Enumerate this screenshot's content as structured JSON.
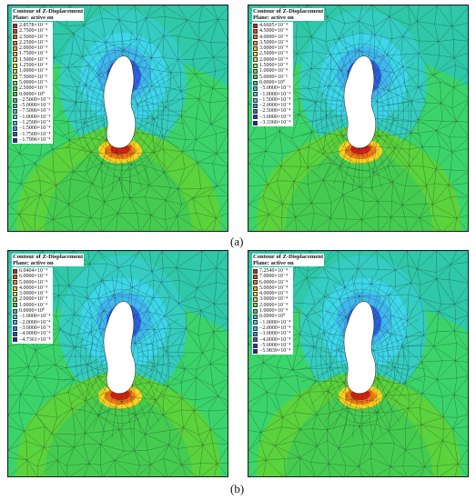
{
  "captions": [
    "(a)",
    "(b)"
  ],
  "panels": [
    {
      "title": "Contour of Z-Displacement",
      "subtitle": "Plane: active on",
      "levels": [
        "2.8578×10⁻⁴",
        "2.7500×10⁻⁴",
        "2.5000×10⁻⁴",
        "2.2500×10⁻⁴",
        "2.0000×10⁻⁴",
        "1.7500×10⁻⁴",
        "1.5000×10⁻⁴",
        "1.2500×10⁻⁴",
        "1.0000×10⁻⁴",
        "7.5000×10⁻⁵",
        "5.0000×10⁻⁵",
        "2.5000×10⁻⁵",
        "0.0000×10⁰",
        "−2.5000×10⁻⁵",
        "−5.0000×10⁻⁵",
        "−7.5000×10⁻⁵",
        "−1.0000×10⁻⁴",
        "−1.2500×10⁻⁴",
        "−1.5000×10⁻⁴",
        "−1.7500×10⁻⁴",
        "−1.7996×10⁻⁴"
      ],
      "colors": [
        "#d81f10",
        "#e43a0f",
        "#ef5a10",
        "#f47a14",
        "#f8a01a",
        "#fbc41c",
        "#fde020",
        "#e8ef26",
        "#c3ec2c",
        "#9ee630",
        "#7cde34",
        "#5cd53e",
        "#40cc58",
        "#36c47c",
        "#32c0a4",
        "#34c6cb",
        "#3cd2e6",
        "#42c0f0",
        "#3a92ec",
        "#2a5ee0",
        "#1b2bd0"
      ]
    },
    {
      "title": "Contour of Z-Displacement",
      "subtitle": "Plane: active on",
      "levels": [
        "4.6605×10⁻⁴",
        "4.5000×10⁻⁴",
        "4.0000×10⁻⁴",
        "3.5000×10⁻⁴",
        "3.0000×10⁻⁴",
        "2.5000×10⁻⁴",
        "2.0000×10⁻⁴",
        "1.5000×10⁻⁴",
        "1.0000×10⁻⁴",
        "5.0000×10⁻⁵",
        "0.0000×10⁰",
        "−5.0000×10⁻⁵",
        "−1.0000×10⁻⁴",
        "−1.5000×10⁻⁴",
        "−2.0000×10⁻⁴",
        "−2.5000×10⁻⁴",
        "−3.0000×10⁻⁴",
        "−3.3360×10⁻⁴"
      ],
      "colors": [
        "#d81f10",
        "#e8440f",
        "#f36a12",
        "#f8961a",
        "#fcc21d",
        "#fde420",
        "#d8ee2a",
        "#a6e630",
        "#6fda38",
        "#42cc56",
        "#34c480",
        "#32c0b0",
        "#3ad0e0",
        "#42bff0",
        "#3a8eec",
        "#2c60e0",
        "#1f38d4",
        "#1a20c8"
      ]
    },
    {
      "title": "Contour of Z-Displacement",
      "subtitle": "Plane: active on",
      "levels": [
        "6.0404×10⁻⁴",
        "6.0000×10⁻⁴",
        "5.0000×10⁻⁴",
        "4.0000×10⁻⁴",
        "3.0000×10⁻⁴",
        "2.0000×10⁻⁴",
        "1.0000×10⁻⁴",
        "0.0000×10⁰",
        "−1.0000×10⁻⁴",
        "−2.0000×10⁻⁴",
        "−3.0000×10⁻⁴",
        "−4.0000×10⁻⁴",
        "−4.7361×10⁻⁴"
      ],
      "colors": [
        "#d81f10",
        "#ec5010",
        "#f88a18",
        "#fcc41d",
        "#d6ee2a",
        "#8ee232",
        "#44cc54",
        "#34c4a0",
        "#3ad0e0",
        "#40b4f0",
        "#3480ea",
        "#2448d8",
        "#1a22c8"
      ]
    },
    {
      "title": "Contour of Z-Displacement",
      "subtitle": "Plane: active on",
      "levels": [
        "7.2549×10⁻⁴",
        "7.0000×10⁻⁴",
        "6.0000×10⁻⁴",
        "5.0000×10⁻⁴",
        "4.0000×10⁻⁴",
        "3.0000×10⁻⁴",
        "2.0000×10⁻⁴",
        "1.0000×10⁻⁴",
        "0.0000×10⁰",
        "−1.0000×10⁻⁴",
        "−2.0000×10⁻⁴",
        "−3.0000×10⁻⁴",
        "−4.0000×10⁻⁴",
        "−5.0000×10⁻⁴",
        "−5.9839×10⁻⁴"
      ],
      "colors": [
        "#d81f10",
        "#e8440f",
        "#f4741a",
        "#fba81c",
        "#fde020",
        "#bfea2c",
        "#72da36",
        "#40cc58",
        "#34c4a0",
        "#3ad0e0",
        "#42bcf0",
        "#3a8cec",
        "#2c5ee0",
        "#1f36d2",
        "#1a20c8"
      ]
    }
  ]
}
